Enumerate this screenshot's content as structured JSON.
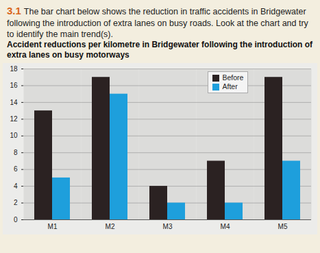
{
  "header": {
    "number": "3.1",
    "text": "The bar chart below shows the reduction in traffic accidents in Bridgewater following the introduction of extra lanes on busy roads. Look at the chart and try to identify the main trend(s)."
  },
  "chart_data": {
    "type": "bar",
    "title": "Accident reductions per kilometre in Bridgewater following the introduction of extra lanes on busy motorways",
    "categories": [
      "M1",
      "M2",
      "M3",
      "M4",
      "M5"
    ],
    "series": [
      {
        "name": "Before",
        "color": "#2b2222",
        "values": [
          13,
          17,
          4,
          7,
          17
        ]
      },
      {
        "name": "After",
        "color": "#1e9fdc",
        "values": [
          5,
          15,
          2,
          2,
          7
        ]
      }
    ],
    "ylim": [
      0,
      18
    ],
    "yticks": [
      0,
      2,
      4,
      6,
      8,
      10,
      12,
      14,
      16,
      18
    ],
    "grid": true,
    "legend": "top-right"
  }
}
